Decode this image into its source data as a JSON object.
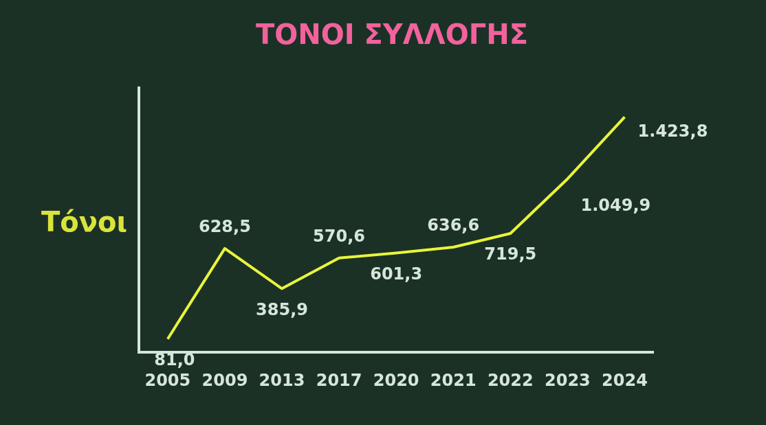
{
  "chart_data": {
    "type": "line",
    "title": "ΤΟΝΟΙ ΣΥΛΛΟΓΗΣ",
    "ylabel": "Τόνοι",
    "categories": [
      "2005",
      "2009",
      "2013",
      "2017",
      "2020",
      "2021",
      "2022",
      "2023",
      "2024"
    ],
    "series": [
      {
        "color": "#e8f53c",
        "values": [
          81.0,
          628.5,
          385.9,
          570.6,
          601.3,
          636.6,
          719.5,
          1049.9,
          1423.8
        ],
        "value_labels": [
          "81,0",
          "628,5",
          "385,9",
          "570,6",
          "601,3",
          "636,6",
          "719,5",
          "1.049,9",
          "1.423,8"
        ]
      }
    ],
    "marker": "none",
    "grid": false,
    "legend": false,
    "tick_labels": "x"
  }
}
